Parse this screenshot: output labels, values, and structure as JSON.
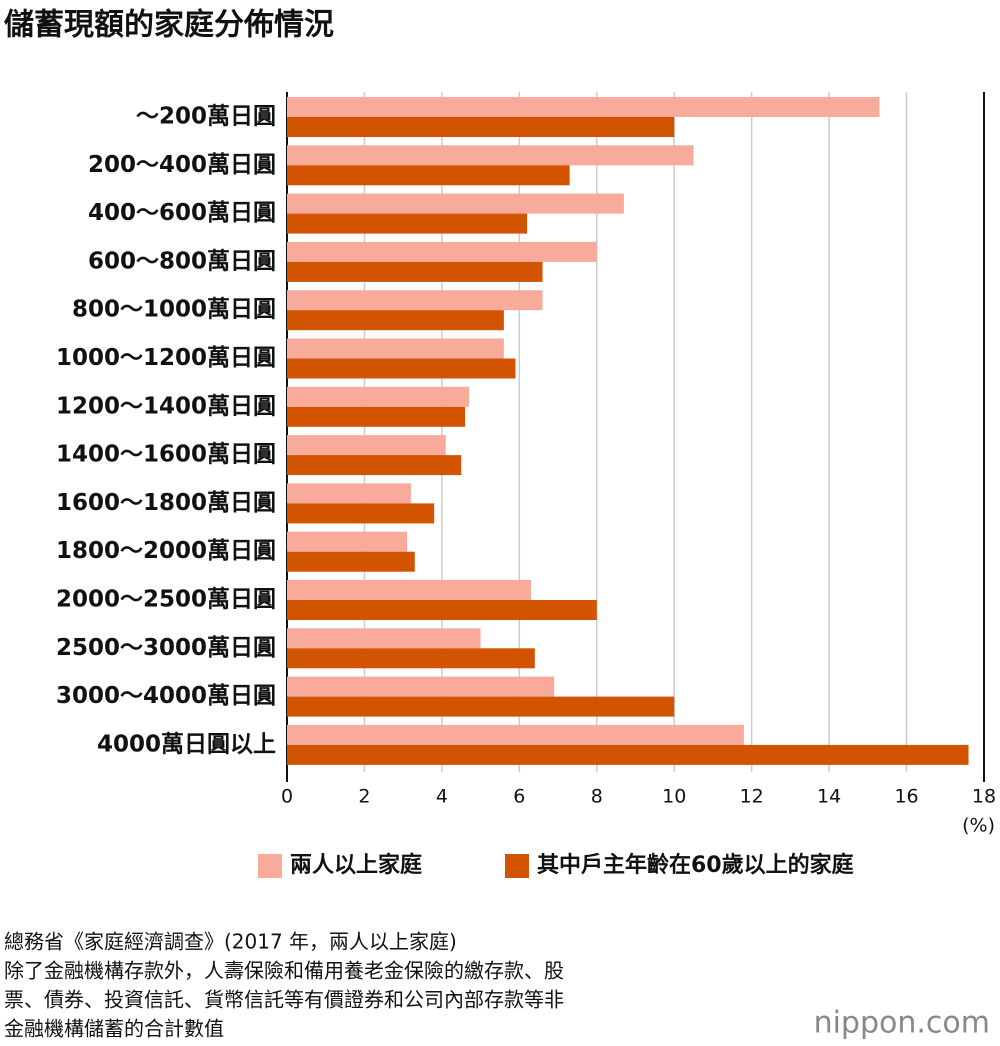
{
  "chart_data": {
    "type": "bar",
    "orientation": "horizontal",
    "title": "儲蓄現額的家庭分佈情況",
    "categories": [
      "～200萬日圓",
      "200～400萬日圓",
      "400～600萬日圓",
      "600～800萬日圓",
      "800～1000萬日圓",
      "1000～1200萬日圓",
      "1200～1400萬日圓",
      "1400～1600萬日圓",
      "1600～1800萬日圓",
      "1800～2000萬日圓",
      "2000～2500萬日圓",
      "2500～3000萬日圓",
      "3000～4000萬日圓",
      "4000萬日圓以上"
    ],
    "series": [
      {
        "name": "兩人以上家庭",
        "color": "#f9ab9b",
        "values": [
          15.3,
          10.5,
          8.7,
          8.0,
          6.6,
          5.6,
          4.7,
          4.1,
          3.2,
          3.1,
          6.3,
          5.0,
          6.9,
          11.8
        ]
      },
      {
        "name": "其中戶主年齡在60歲以上的家庭",
        "color": "#d35400",
        "values": [
          10.0,
          7.3,
          6.2,
          6.6,
          5.6,
          5.9,
          4.6,
          4.5,
          3.8,
          3.3,
          8.0,
          6.4,
          10.0,
          17.6
        ]
      }
    ],
    "xlim": [
      0,
      18
    ],
    "xticks": [
      0,
      2,
      4,
      6,
      8,
      10,
      12,
      14,
      16,
      18
    ],
    "x_unit": "(%)",
    "grid": true,
    "legend": "bottom",
    "notes": [
      "總務省《家庭經濟調查》(2017 年，兩人以上家庭)",
      "除了金融機構存款外，人壽保險和備用養老金保險的繳存款、股",
      "票、債券、投資信託、貨幣信託等有價證券和公司內部存款等非",
      "金融機構儲蓄的合計數值"
    ],
    "brand": "nippon.com"
  }
}
